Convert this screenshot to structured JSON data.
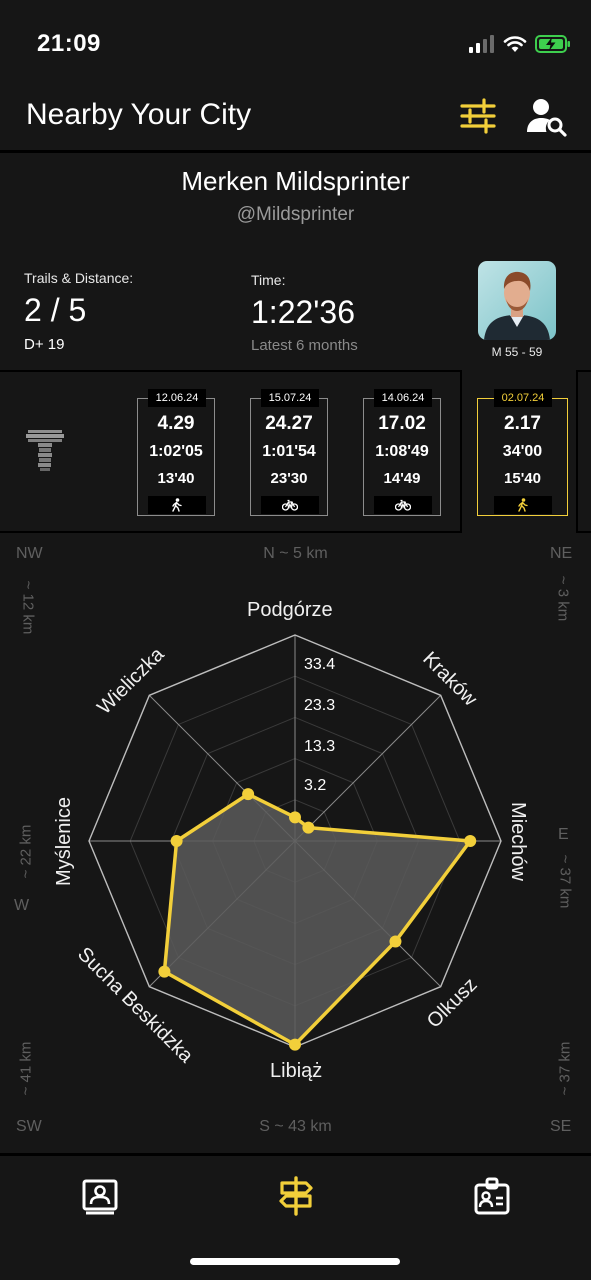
{
  "status_bar": {
    "time": "21:09"
  },
  "header": {
    "title": "Nearby Your City"
  },
  "profile": {
    "name": "Merken Mildsprinter",
    "handle": "@Mildsprinter",
    "trails_label": "Trails & Distance:",
    "trails_value": "2 / 5",
    "elevation": "D+ 19",
    "time_label": "Time:",
    "time_value": "1:22'36",
    "time_period": "Latest 6 months",
    "category": "M 55 - 59"
  },
  "activities": [
    {
      "date": "12.06.24",
      "distance": "4.29",
      "duration": "1:02'05",
      "pace": "13'40",
      "mode": "walk-icon",
      "highlight": false
    },
    {
      "date": "15.07.24",
      "distance": "24.27",
      "duration": "1:01'54",
      "pace": "23'30",
      "mode": "bike-icon",
      "highlight": false
    },
    {
      "date": "14.06.24",
      "distance": "17.02",
      "duration": "1:08'49",
      "pace": "14'49",
      "mode": "bike-icon",
      "highlight": false
    },
    {
      "date": "02.07.24",
      "distance": "2.17",
      "duration": "34'00",
      "pace": "15'40",
      "mode": "walk-icon",
      "highlight": true
    }
  ],
  "compass": {
    "n": "N  ~  5 km",
    "s": "S  ~  43 km",
    "nw": "NW",
    "nw_dist": "~ 12 km",
    "ne": "NE",
    "ne_dist": "~ 3 km",
    "w": "W",
    "w_dist": "~ 22 km",
    "e": "E",
    "e_dist": "~ 37 km",
    "sw": "SW",
    "sw_dist": "~ 41 km",
    "se": "SE",
    "se_dist": "~ 37 km"
  },
  "chart_data": {
    "type": "radar",
    "categories": [
      "Podgórze",
      "Kraków",
      "Miechów",
      "Olkusz",
      "Libiąż",
      "Sucha Beskidzka",
      "Myślenice",
      "Wieliczka"
    ],
    "values": [
      5.0,
      4.0,
      37.0,
      30.0,
      43.0,
      39.0,
      25.0,
      14.0
    ],
    "ticks": [
      "3.2",
      "13.3",
      "23.3",
      "33.4"
    ],
    "rmax": 43.5,
    "colors": {
      "series": "#f2cf3a",
      "fill": "#5a5a5a",
      "grid": "#bdbdbd"
    }
  },
  "colors": {
    "accent": "#f2cf3a",
    "background": "#161616"
  }
}
